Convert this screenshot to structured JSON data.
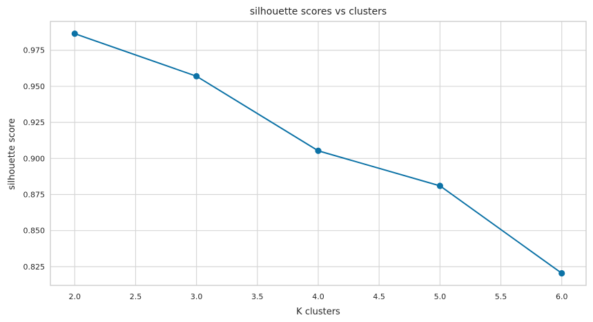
{
  "chart_data": {
    "type": "line",
    "title": "silhouette scores vs clusters",
    "xlabel": "K clusters",
    "ylabel": "silhouette score",
    "x": [
      2.0,
      3.0,
      4.0,
      5.0,
      6.0
    ],
    "series": [
      {
        "values": [
          0.9865,
          0.957,
          0.9053,
          0.881,
          0.8204
        ],
        "color": "#0c72a6",
        "marker": "circle"
      }
    ],
    "xlim": [
      1.8,
      6.2
    ],
    "ylim": [
      0.812,
      0.995
    ],
    "xticks": [
      2.0,
      2.5,
      3.0,
      3.5,
      4.0,
      4.5,
      5.0,
      5.5,
      6.0
    ],
    "xtick_labels": [
      "2.0",
      "2.5",
      "3.0",
      "3.5",
      "4.0",
      "4.5",
      "5.0",
      "5.5",
      "6.0"
    ],
    "yticks": [
      0.825,
      0.85,
      0.875,
      0.9,
      0.925,
      0.95,
      0.975
    ],
    "ytick_labels": [
      "0.825",
      "0.850",
      "0.875",
      "0.900",
      "0.925",
      "0.950",
      "0.975"
    ],
    "grid": true,
    "colors": {
      "grid": "#d6d6d6",
      "frame": "#cccccc",
      "background": "#ffffff"
    }
  }
}
